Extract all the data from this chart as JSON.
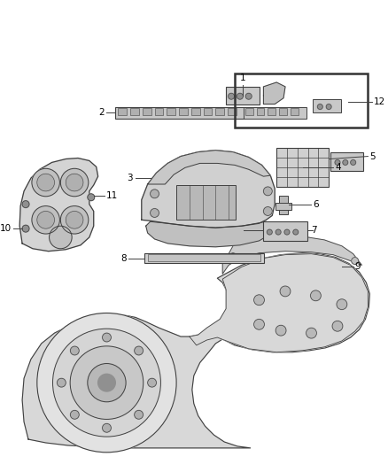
{
  "background_color": "#ffffff",
  "line_color": "#404040",
  "label_color": "#000000",
  "figsize": [
    4.38,
    5.33
  ],
  "dpi": 100,
  "fill_light": "#d8d8d8",
  "fill_mid": "#c0c0c0",
  "fill_dark": "#a0a0a0",
  "fill_white": "#f0f0f0"
}
